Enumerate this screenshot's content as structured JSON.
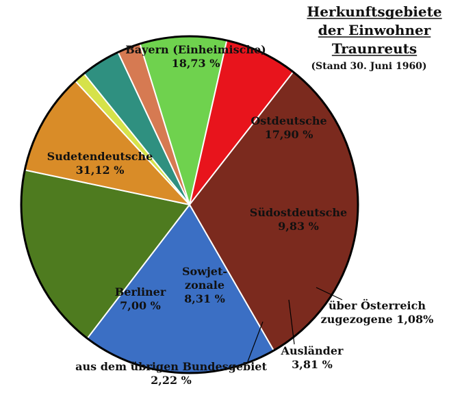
{
  "chart_data": {
    "type": "pie",
    "title_lines": [
      "Herkunftsgebiete",
      "der Einwohner",
      "Traunreuts"
    ],
    "subtitle": "(Stand 30. Juni 1960)",
    "slices": [
      {
        "label_lines": [
          "Bayern (Einheimische)"
        ],
        "value_text": "18,73 %",
        "value": 18.73,
        "color": "#3b6fc4"
      },
      {
        "label_lines": [
          "Ostdeutsche"
        ],
        "value_text": "17,90 %",
        "value": 17.9,
        "color": "#4e7b1f"
      },
      {
        "label_lines": [
          "Südostdeutsche"
        ],
        "value_text": "9,83 %",
        "value": 9.83,
        "color": "#d98c28"
      },
      {
        "label_lines": [
          "über Österreich",
          "zugezogene 1,08%"
        ],
        "value_text": "",
        "value": 1.08,
        "color": "#d6e24a"
      },
      {
        "label_lines": [
          "Ausländer"
        ],
        "value_text": "3,81 %",
        "value": 3.81,
        "color": "#2f9080"
      },
      {
        "label_lines": [
          "aus dem übrigen Bundesgebiet"
        ],
        "value_text": "2,22 %",
        "value": 2.22,
        "color": "#d67a52"
      },
      {
        "label_lines": [
          "Sowjet-",
          "zonale"
        ],
        "value_text": "8,31 %",
        "value": 8.31,
        "color": "#6fd24e"
      },
      {
        "label_lines": [
          "Berliner"
        ],
        "value_text": "7,00 %",
        "value": 7.0,
        "color": "#e8141c"
      },
      {
        "label_lines": [
          "Sudetendeutsche"
        ],
        "value_text": "31,12 %",
        "value": 31.12,
        "color": "#7b2a1e"
      }
    ]
  }
}
